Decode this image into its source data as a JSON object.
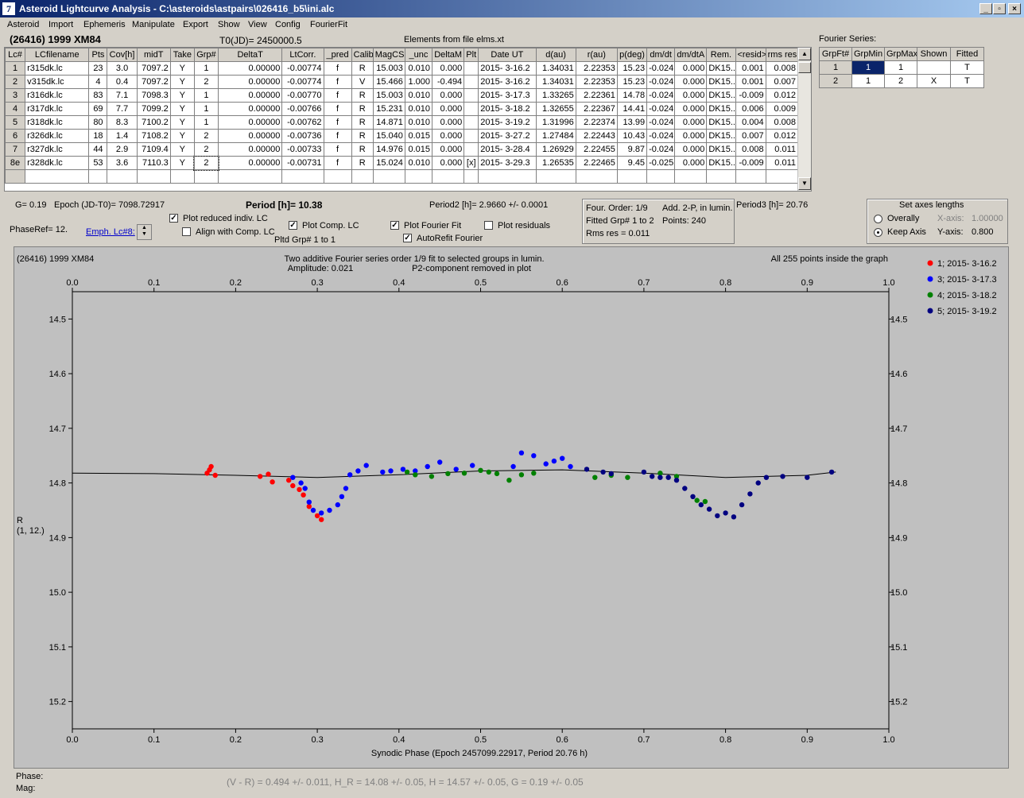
{
  "window": {
    "title": "Asteroid Lightcurve Analysis - C:\\asteroids\\astpairs\\026416_b5\\ini.alc",
    "app_icon": "7"
  },
  "menu": [
    "Asteroid",
    "Import",
    "Ephemeris",
    "Manipulate",
    "Export",
    "Show",
    "View",
    "Config",
    "FourierFit"
  ],
  "header": {
    "asteroid": "(26416) 1999 XM84",
    "t0": "T0(JD)= 2450000.5",
    "elements": "Elements from file elms.xt",
    "fourier_series_label": "Fourier Series:"
  },
  "lc_table": {
    "columns": [
      "Lc#",
      "LCfilename",
      "Pts",
      "Cov[h]",
      "midT",
      "Take",
      "Grp#",
      "DeltaT",
      "LtCorr.",
      "_pred",
      "Calib.",
      "MagCS",
      "_unc",
      "DeltaM",
      "Plt",
      "Date UT",
      "d(au)",
      "r(au)",
      "p(deg)",
      "dm/dt",
      "dm/dtA",
      "Rem.",
      "<resid>",
      "rms res"
    ],
    "rows": [
      [
        "1",
        "r315dk.lc",
        "23",
        "3.0",
        "7097.2",
        "Y",
        "1",
        "0.00000",
        "-0.00774",
        "f",
        "R",
        "15.003",
        "0.010",
        "0.000",
        "",
        "2015- 3-16.2",
        "1.34031",
        "2.22353",
        "15.23",
        "-0.024",
        "0.000",
        "DK15..",
        "0.001",
        "0.008"
      ],
      [
        "2",
        "v315dk.lc",
        "4",
        "0.4",
        "7097.2",
        "Y",
        "2",
        "0.00000",
        "-0.00774",
        "f",
        "V",
        "15.466",
        "1.000",
        "-0.494",
        "",
        "2015- 3-16.2",
        "1.34031",
        "2.22353",
        "15.23",
        "-0.024",
        "0.000",
        "DK15..",
        "0.001",
        "0.007"
      ],
      [
        "3",
        "r316dk.lc",
        "83",
        "7.1",
        "7098.3",
        "Y",
        "1",
        "0.00000",
        "-0.00770",
        "f",
        "R",
        "15.003",
        "0.010",
        "0.000",
        "",
        "2015- 3-17.3",
        "1.33265",
        "2.22361",
        "14.78",
        "-0.024",
        "0.000",
        "DK15..",
        "-0.009",
        "0.012"
      ],
      [
        "4",
        "r317dk.lc",
        "69",
        "7.7",
        "7099.2",
        "Y",
        "1",
        "0.00000",
        "-0.00766",
        "f",
        "R",
        "15.231",
        "0.010",
        "0.000",
        "",
        "2015- 3-18.2",
        "1.32655",
        "2.22367",
        "14.41",
        "-0.024",
        "0.000",
        "DK15..",
        "0.006",
        "0.009"
      ],
      [
        "5",
        "r318dk.lc",
        "80",
        "8.3",
        "7100.2",
        "Y",
        "1",
        "0.00000",
        "-0.00762",
        "f",
        "R",
        "14.871",
        "0.010",
        "0.000",
        "",
        "2015- 3-19.2",
        "1.31996",
        "2.22374",
        "13.99",
        "-0.024",
        "0.000",
        "DK15..",
        "0.004",
        "0.008"
      ],
      [
        "6",
        "r326dk.lc",
        "18",
        "1.4",
        "7108.2",
        "Y",
        "2",
        "0.00000",
        "-0.00736",
        "f",
        "R",
        "15.040",
        "0.015",
        "0.000",
        "",
        "2015- 3-27.2",
        "1.27484",
        "2.22443",
        "10.43",
        "-0.024",
        "0.000",
        "DK15..",
        "0.007",
        "0.012"
      ],
      [
        "7",
        "r327dk.lc",
        "44",
        "2.9",
        "7109.4",
        "Y",
        "2",
        "0.00000",
        "-0.00733",
        "f",
        "R",
        "14.976",
        "0.015",
        "0.000",
        "",
        "2015- 3-28.4",
        "1.26929",
        "2.22455",
        "9.87",
        "-0.024",
        "0.000",
        "DK15..",
        "0.008",
        "0.011"
      ],
      [
        "8e",
        "r328dk.lc",
        "53",
        "3.6",
        "7110.3",
        "Y",
        "2",
        "0.00000",
        "-0.00731",
        "f",
        "R",
        "15.024",
        "0.010",
        "0.000",
        "[x]",
        "2015- 3-29.3",
        "1.26535",
        "2.22465",
        "9.45",
        "-0.025",
        "0.000",
        "DK15..",
        "-0.009",
        "0.011"
      ]
    ]
  },
  "fourier_table": {
    "columns": [
      "GrpFt#",
      "GrpMin",
      "GrpMax",
      "Shown",
      "Fitted"
    ],
    "rows": [
      [
        "1",
        "1",
        "1",
        "",
        "T"
      ],
      [
        "2",
        "1",
        "2",
        "X",
        "T"
      ]
    ]
  },
  "info": {
    "g": "G= 0.19",
    "epoch": "Epoch (JD-T0)= 7098.72917",
    "period": "Period [h]= 10.38",
    "period2": "Period2 [h]= 2.9660 +/- 0.0001",
    "period3": "Period3 [h]= 20.76",
    "phaseref": "PhaseRef= 12.",
    "emph": "Emph. Lc#8:",
    "plot_reduced": "Plot reduced indiv. LC",
    "align_comp": "Align with Comp. LC",
    "plot_comp": "Plot Comp. LC",
    "pltd_grp": "Pltd Grp#  1   to   1",
    "plot_fourier": "Plot Fourier Fit",
    "autorefit": "AutoRefit Fourier",
    "plot_residuals": "Plot residuals",
    "four_order": "Four. Order:  1/9",
    "add_2p": "Add. 2-P, in lumin.",
    "fitted_grp": "Fitted Grp# 1 to 2",
    "points": "Points: 240",
    "rms": "Rms res     = 0.011",
    "axes_title": "Set axes lengths",
    "overally": "Overally",
    "keep_axis": "Keep Axis",
    "xaxis_label": "X-axis:",
    "xaxis_val": "1.00000",
    "yaxis_label": "Y-axis:",
    "yaxis_val": "0.800"
  },
  "plot": {
    "name": "(26416) 1999 XM84",
    "caption1": "Two additive Fourier series order 1/9 fit to selected groups in lumin.",
    "caption2": "Amplitude: 0.021",
    "caption3": "P2-component removed in plot",
    "points_inside": "All 255 points inside the graph",
    "ylabel1": "R",
    "ylabel2": "(1, 12.)",
    "xlabel": "Synodic Phase (Epoch 2457099.22917, Period 20.76 h)"
  },
  "chart_data": {
    "type": "scatter",
    "xlim": [
      0.0,
      1.0
    ],
    "ylim": [
      15.25,
      14.45
    ],
    "x_ticks": [
      "0.0",
      "0.1",
      "0.2",
      "0.3",
      "0.4",
      "0.5",
      "0.6",
      "0.7",
      "0.8",
      "0.9",
      "1.0"
    ],
    "y_ticks": [
      "14.5",
      "14.6",
      "14.7",
      "14.8",
      "14.9",
      "15.0",
      "15.1",
      "15.2"
    ],
    "series": [
      {
        "name": "1; 2015- 3-16.2",
        "color": "#ff0000",
        "points": [
          [
            0.165,
            14.782
          ],
          [
            0.17,
            14.77
          ],
          [
            0.175,
            14.786
          ],
          [
            0.168,
            14.776
          ],
          [
            0.23,
            14.788
          ],
          [
            0.24,
            14.784
          ],
          [
            0.245,
            14.798
          ],
          [
            0.265,
            14.795
          ],
          [
            0.27,
            14.805
          ],
          [
            0.278,
            14.812
          ],
          [
            0.283,
            14.822
          ],
          [
            0.29,
            14.843
          ],
          [
            0.3,
            14.86
          ],
          [
            0.305,
            14.867
          ]
        ]
      },
      {
        "name": "3; 2015- 3-17.3",
        "color": "#0000ff",
        "points": [
          [
            0.27,
            14.79
          ],
          [
            0.28,
            14.8
          ],
          [
            0.285,
            14.81
          ],
          [
            0.29,
            14.835
          ],
          [
            0.295,
            14.85
          ],
          [
            0.305,
            14.855
          ],
          [
            0.315,
            14.85
          ],
          [
            0.325,
            14.84
          ],
          [
            0.33,
            14.825
          ],
          [
            0.335,
            14.81
          ],
          [
            0.34,
            14.785
          ],
          [
            0.35,
            14.778
          ],
          [
            0.36,
            14.768
          ],
          [
            0.38,
            14.78
          ],
          [
            0.39,
            14.778
          ],
          [
            0.405,
            14.775
          ],
          [
            0.42,
            14.778
          ],
          [
            0.435,
            14.77
          ],
          [
            0.45,
            14.762
          ],
          [
            0.47,
            14.775
          ],
          [
            0.49,
            14.768
          ],
          [
            0.54,
            14.77
          ],
          [
            0.55,
            14.745
          ],
          [
            0.565,
            14.75
          ],
          [
            0.58,
            14.765
          ],
          [
            0.59,
            14.76
          ],
          [
            0.6,
            14.755
          ],
          [
            0.61,
            14.77
          ]
        ]
      },
      {
        "name": "4; 2015- 3-18.2",
        "color": "#008000",
        "points": [
          [
            0.41,
            14.78
          ],
          [
            0.42,
            14.785
          ],
          [
            0.44,
            14.788
          ],
          [
            0.46,
            14.783
          ],
          [
            0.48,
            14.782
          ],
          [
            0.5,
            14.777
          ],
          [
            0.51,
            14.78
          ],
          [
            0.52,
            14.783
          ],
          [
            0.535,
            14.795
          ],
          [
            0.55,
            14.785
          ],
          [
            0.565,
            14.782
          ],
          [
            0.64,
            14.79
          ],
          [
            0.66,
            14.786
          ],
          [
            0.68,
            14.79
          ],
          [
            0.72,
            14.782
          ],
          [
            0.74,
            14.788
          ],
          [
            0.765,
            14.832
          ],
          [
            0.775,
            14.834
          ]
        ]
      },
      {
        "name": "5; 2015- 3-19.2",
        "color": "#000080",
        "points": [
          [
            0.63,
            14.775
          ],
          [
            0.65,
            14.78
          ],
          [
            0.66,
            14.783
          ],
          [
            0.7,
            14.78
          ],
          [
            0.71,
            14.788
          ],
          [
            0.72,
            14.79
          ],
          [
            0.73,
            14.79
          ],
          [
            0.74,
            14.795
          ],
          [
            0.75,
            14.81
          ],
          [
            0.76,
            14.825
          ],
          [
            0.77,
            14.84
          ],
          [
            0.78,
            14.848
          ],
          [
            0.79,
            14.86
          ],
          [
            0.8,
            14.855
          ],
          [
            0.81,
            14.862
          ],
          [
            0.82,
            14.84
          ],
          [
            0.83,
            14.82
          ],
          [
            0.84,
            14.8
          ],
          [
            0.85,
            14.79
          ],
          [
            0.87,
            14.788
          ],
          [
            0.9,
            14.79
          ],
          [
            0.93,
            14.78
          ]
        ]
      }
    ],
    "fit_curve": [
      [
        0,
        14.782
      ],
      [
        0.1,
        14.783
      ],
      [
        0.2,
        14.786
      ],
      [
        0.3,
        14.79
      ],
      [
        0.4,
        14.785
      ],
      [
        0.5,
        14.778
      ],
      [
        0.6,
        14.776
      ],
      [
        0.7,
        14.782
      ],
      [
        0.8,
        14.79
      ],
      [
        0.9,
        14.786
      ],
      [
        0.935,
        14.78
      ]
    ]
  },
  "status": {
    "phase": "Phase:",
    "mag": "Mag:",
    "result": "(V - R) = 0.494 +/- 0.011, H_R = 14.08 +/- 0.05, H = 14.57 +/- 0.05,  G = 0.19 +/- 0.05"
  }
}
